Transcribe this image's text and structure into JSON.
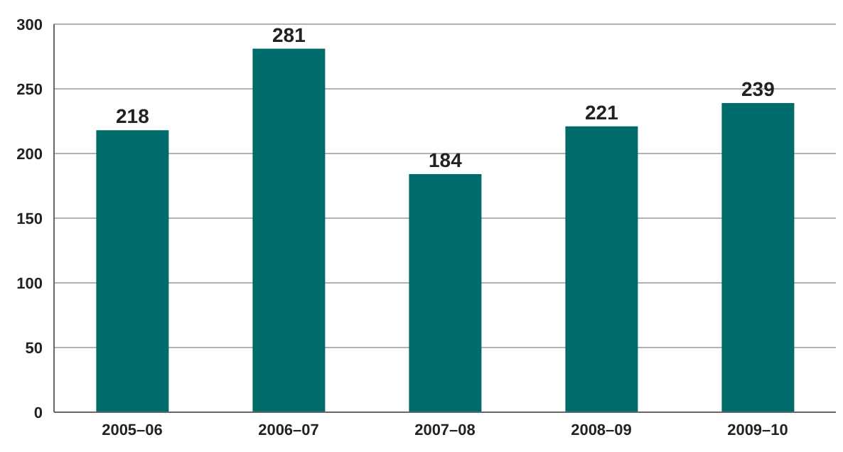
{
  "chart_data": {
    "type": "bar",
    "categories": [
      "2005–06",
      "2006–07",
      "2007–08",
      "2008–09",
      "2009–10"
    ],
    "values": [
      218,
      281,
      184,
      221,
      239
    ],
    "color": "#006b6b",
    "ylim": [
      0,
      300
    ],
    "yticks": [
      0,
      50,
      100,
      150,
      200,
      250,
      300
    ],
    "grid": "y",
    "data_labels": true
  }
}
